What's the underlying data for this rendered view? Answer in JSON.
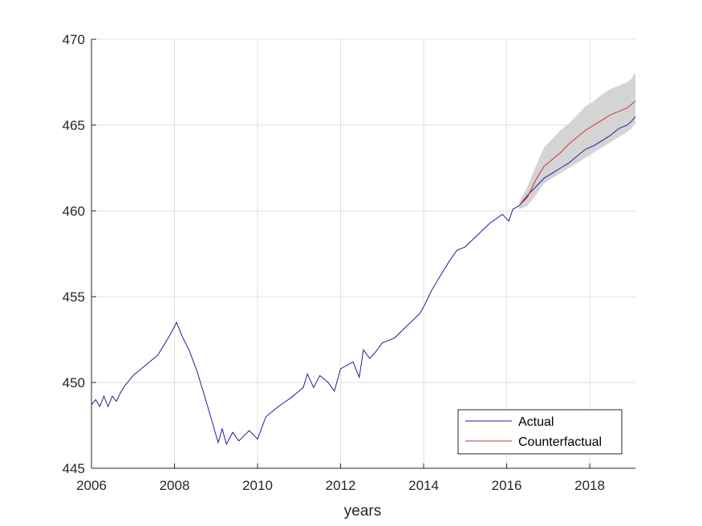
{
  "chart_data": {
    "type": "line",
    "xlabel": "years",
    "ylabel": "",
    "xlim": [
      2006,
      2019.1
    ],
    "ylim": [
      445,
      470
    ],
    "x_ticks": [
      "2006",
      "2008",
      "2010",
      "2012",
      "2014",
      "2016",
      "2018"
    ],
    "y_ticks": [
      "445",
      "450",
      "455",
      "460",
      "465",
      "470"
    ],
    "grid": true,
    "legend_position": "bottom-right",
    "colors": {
      "actual": "#1f1f99",
      "counterfactual": "#cc3333",
      "band": "#d4d4d4",
      "grid": "#e0e0e0",
      "axis": "#262626"
    },
    "series": [
      {
        "name": "Actual",
        "x": [
          2006.0,
          2006.1,
          2006.2,
          2006.3,
          2006.4,
          2006.5,
          2006.6,
          2006.7,
          2006.8,
          2006.9,
          2007.0,
          2007.3,
          2007.6,
          2007.9,
          2008.05,
          2008.2,
          2008.35,
          2008.55,
          2008.8,
          2009.05,
          2009.15,
          2009.25,
          2009.4,
          2009.55,
          2009.8,
          2010.0,
          2010.2,
          2010.5,
          2010.8,
          2011.1,
          2011.2,
          2011.35,
          2011.5,
          2011.7,
          2011.85,
          2012.0,
          2012.3,
          2012.45,
          2012.55,
          2012.7,
          2012.85,
          2013.0,
          2013.3,
          2013.6,
          2013.9,
          2014.0,
          2014.2,
          2014.4,
          2014.6,
          2014.8,
          2015.0,
          2015.3,
          2015.6,
          2015.9,
          2016.05,
          2016.15,
          2016.3,
          2016.5,
          2016.7,
          2016.9,
          2017.1,
          2017.3,
          2017.5,
          2017.7,
          2017.9,
          2018.1,
          2018.3,
          2018.5,
          2018.7,
          2018.9,
          2019.0,
          2019.1
        ],
        "values": [
          448.7,
          449.0,
          448.6,
          449.2,
          448.6,
          449.2,
          448.9,
          449.4,
          449.8,
          450.1,
          450.4,
          451.0,
          451.6,
          452.8,
          453.5,
          452.6,
          451.9,
          450.6,
          448.6,
          446.5,
          447.3,
          446.4,
          447.1,
          446.6,
          447.2,
          446.7,
          448.0,
          448.6,
          449.1,
          449.7,
          450.5,
          449.7,
          450.4,
          450.0,
          449.5,
          450.8,
          451.2,
          450.3,
          451.9,
          451.4,
          451.8,
          452.3,
          452.6,
          453.3,
          454.0,
          454.4,
          455.4,
          456.2,
          457.0,
          457.7,
          457.9,
          458.6,
          459.3,
          459.8,
          459.4,
          460.1,
          460.3,
          460.9,
          461.4,
          461.9,
          462.2,
          462.5,
          462.8,
          463.2,
          463.6,
          463.8,
          464.1,
          464.4,
          464.8,
          465.0,
          465.2,
          465.5
        ]
      },
      {
        "name": "Counterfactual",
        "x": [
          2016.3,
          2016.5,
          2016.7,
          2016.9,
          2017.1,
          2017.3,
          2017.5,
          2017.7,
          2017.9,
          2018.1,
          2018.3,
          2018.5,
          2018.7,
          2018.9,
          2019.0,
          2019.1
        ],
        "values": [
          460.3,
          460.8,
          461.8,
          462.6,
          463.0,
          463.4,
          463.9,
          464.3,
          464.7,
          465.0,
          465.3,
          465.6,
          465.8,
          466.0,
          466.2,
          466.4
        ]
      }
    ],
    "band": {
      "x": [
        2016.3,
        2016.5,
        2016.7,
        2016.9,
        2017.1,
        2017.3,
        2017.5,
        2017.7,
        2017.9,
        2018.1,
        2018.3,
        2018.5,
        2018.7,
        2018.9,
        2019.0,
        2019.1
      ],
      "lower": [
        460.1,
        460.3,
        460.9,
        461.6,
        461.9,
        462.2,
        462.5,
        462.8,
        463.1,
        463.4,
        463.7,
        464.0,
        464.3,
        464.6,
        464.8,
        465.1
      ],
      "upper": [
        460.5,
        461.4,
        462.6,
        463.7,
        464.2,
        464.7,
        465.1,
        465.6,
        466.1,
        466.4,
        466.8,
        467.1,
        467.3,
        467.5,
        467.7,
        468.1
      ]
    }
  }
}
